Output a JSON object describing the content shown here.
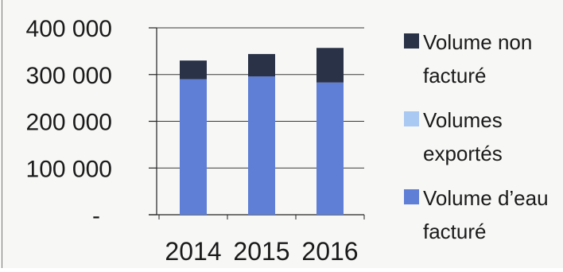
{
  "chart_data": {
    "type": "bar",
    "stacked": true,
    "categories": [
      "2014",
      "2015",
      "2016"
    ],
    "series": [
      {
        "name": "Volume d’eau facturé",
        "values": [
          290000,
          296000,
          283000
        ],
        "color": "#5f7fd6"
      },
      {
        "name": "Volumes exportés",
        "values": [
          0,
          0,
          0
        ],
        "color": "#a9c8f2"
      },
      {
        "name": "Volume non facturé",
        "values": [
          40000,
          48000,
          74000
        ],
        "color": "#2a3248"
      }
    ],
    "ylim": [
      0,
      400000
    ],
    "yticks": [
      0,
      100000,
      200000,
      300000,
      400000
    ],
    "ytick_labels": [
      "-",
      "100 000",
      "200 000",
      "300 000",
      "400 000"
    ],
    "legend_order": [
      2,
      1,
      0
    ],
    "legend_labels": [
      [
        "Volume non",
        "facturé"
      ],
      [
        "Volumes",
        "exportés"
      ],
      [
        "Volume d’eau",
        "facturé"
      ]
    ],
    "legend_position": "right",
    "grid": true
  }
}
